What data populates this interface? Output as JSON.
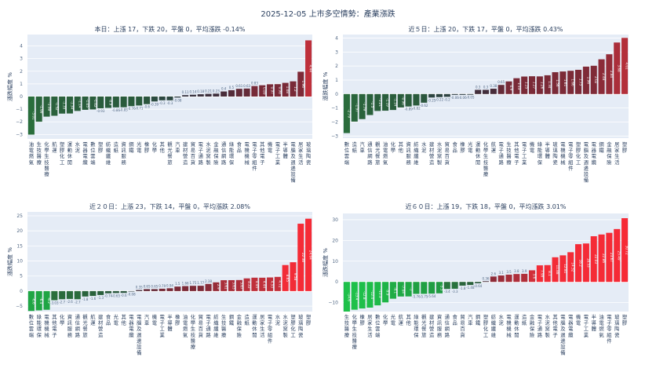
{
  "title": "2025-12-05 上市多空情勢：產業漲跌",
  "chart_data": [
    {
      "type": "bar",
      "title": "本日：上漲 17，下跌 20，平盤 0，平均漲跌 -0.14%",
      "ylabel": "漲跌幅度 %",
      "ylim": [
        -3.35,
        4.9
      ],
      "yticks": [
        -3,
        -2,
        -1,
        0,
        1,
        2,
        3,
        4
      ],
      "categories": [
        "油電燃氣",
        "生技醫療",
        "化學生技醫療",
        "航運",
        "塑膠化工",
        "運動休閒",
        "水泥",
        "電器電纜",
        "數位雲端",
        "塑膠",
        "紡織纖維",
        "造紙",
        "資訊服務",
        "鋼鐵",
        "光電",
        "橡膠",
        "化學",
        "其他",
        "觀光餐旅",
        "汽車",
        "建材營造",
        "貿易百貨",
        "電子通路",
        "水泥窯製",
        "金融保險",
        "通信網路",
        "綠能環保",
        "食品",
        "電機機械",
        "電子零組件",
        "其他電子",
        "機電",
        "電子工業",
        "半導體",
        "電腦及週邊設備",
        "居家生活",
        "玻璃陶瓷"
      ],
      "values": [
        -3.01,
        -1.99,
        -1.59,
        -1.52,
        -1.35,
        -1.34,
        -1.14,
        -1.05,
        -1.02,
        -0.93,
        -0.9,
        -0.86,
        -0.85,
        -0.76,
        -0.71,
        -0.6,
        -0.39,
        -0.3,
        -0.3,
        -0.08,
        0.11,
        0.14,
        0.18,
        0.21,
        0.23,
        0.4,
        0.5,
        0.61,
        0.63,
        0.83,
        0.89,
        0.97,
        0.98,
        1.08,
        1.2,
        1.96,
        4.44
      ]
    },
    {
      "type": "bar",
      "title": "近５日：上漲 20，下跌 17，平盤 0，平均漲跌 0.43%",
      "ylabel": "漲跌幅度 %",
      "ylim": [
        -3.15,
        4.25
      ],
      "yticks": [
        -3,
        -2,
        -1,
        0,
        1,
        2,
        3,
        4
      ],
      "categories": [
        "數位雲端",
        "造紙",
        "汽車",
        "通信網路",
        "觀光餐旅",
        "油電燃氣",
        "化學",
        "其他",
        "資訊服務",
        "紡織纖維",
        "水泥",
        "建材營造",
        "水泥窯製",
        "貿易百貨",
        "食品",
        "橡膠",
        "光電",
        "運動休閒",
        "化學生技醫療",
        "航運",
        "電子通路",
        "生技醫療",
        "其他電子",
        "電子工業",
        "機電",
        "綠能環保",
        "半導體",
        "玻璃陶瓷",
        "電機機械",
        "電子零組件",
        "塑膠化工",
        "電腦及週邊設備",
        "電器電纜",
        "鋼鐵",
        "金融保險",
        "居家生活",
        "塑膠"
      ],
      "values": [
        -2.79,
        -1.97,
        -1.79,
        -1.5,
        -1.21,
        -1.19,
        -1.14,
        -0.96,
        -0.89,
        -0.82,
        -0.62,
        -0.25,
        -0.22,
        -0.2,
        -0.06,
        -0.06,
        -0.05,
        0.3,
        0.3,
        0.38,
        0.65,
        0.9,
        1.13,
        1.25,
        1.27,
        1.26,
        1.34,
        1.56,
        1.61,
        1.66,
        1.73,
        1.96,
        2.02,
        2.48,
        2.84,
        3.68,
        4.01
      ]
    },
    {
      "type": "bar",
      "title": "近２０日：上漲 23，下跌 14，平盤 0，平均漲跌 2.08%",
      "ylabel": "漲跌幅度 %",
      "ylim": [
        -6.8,
        26.3
      ],
      "yticks": [
        -5,
        0,
        5,
        10,
        15,
        20,
        25
      ],
      "categories": [
        "數位雲端",
        "綠能環保",
        "電機機械",
        "其他電子",
        "化學",
        "資訊服務",
        "通信網路",
        "觀光餐旅",
        "航運",
        "建材營造",
        "食品",
        "光電",
        "其他",
        "電器電纜",
        "電腦及週邊設備",
        "汽車",
        "機電",
        "電子工業",
        "半導體",
        "橡膠",
        "油電燃氣",
        "化學生技醫療",
        "貿易百貨",
        "電子通路",
        "紡織纖維",
        "生技醫療",
        "鋼鐵",
        "金融保險",
        "造紙",
        "運動休閒",
        "居家生活",
        "電子零組件",
        "水泥",
        "水泥窯製",
        "塑膠化工",
        "玻璃陶瓷",
        "塑膠"
      ],
      "values": [
        -6.6,
        -6.4,
        -6.2,
        -3.03,
        -2.7,
        -2.6,
        -2.7,
        -1.8,
        -1.6,
        -1.3,
        -0.74,
        -0.65,
        -0.6,
        -0.08,
        0.35,
        0.65,
        0.65,
        0.79,
        0.94,
        1.5,
        1.66,
        1.75,
        1.77,
        2.38,
        2.9,
        3.61,
        3.63,
        3.67,
        4.22,
        4.45,
        4.44,
        4.53,
        4.72,
        8.65,
        9.58,
        22.38,
        24.04
      ]
    },
    {
      "type": "bar",
      "title": "近６０日：上漲 19，下跌 18，平盤 0，平均漲跌 3.01%",
      "ylabel": "漲跌幅度 %",
      "ylim": [
        -14.3,
        33
      ],
      "yticks": [
        -10,
        0,
        10,
        20,
        30
      ],
      "categories": [
        "生技醫療",
        "化學生技醫療",
        "橡膠",
        "居家生活",
        "數位雲端",
        "化學",
        "光電",
        "航運",
        "其他",
        "綠能環保",
        "觀光餐旅",
        "建材營造",
        "資訊服務",
        "通信網路",
        "食品",
        "貿易百貨",
        "汽車",
        "鋼鐵",
        "塑膠化工",
        "紡織纖維",
        "水泥",
        "電機機械",
        "運動休閒",
        "造紙",
        "金融保險",
        "電子通路",
        "水泥窯製",
        "其他電子",
        "電腦及週邊設備",
        "電器電纜",
        "機電",
        "電子工業",
        "半導體",
        "油電燃氣",
        "電子零組件",
        "玻璃陶瓷",
        "塑膠"
      ],
      "values": [
        -14.6,
        -13.4,
        -12.8,
        -12.4,
        -11.3,
        -9.9,
        -8.1,
        -7.04,
        -7,
        -5.76,
        -5.75,
        -5.64,
        -5.5,
        -3.4,
        -3.3,
        -1.8,
        -1.48,
        -0.64,
        0.36,
        2.6,
        3.1,
        3.5,
        3.8,
        3.9,
        5.6,
        7.99,
        8.1,
        11.88,
        12.81,
        14.32,
        18.2,
        18.53,
        22.03,
        22.86,
        23.67,
        25.49,
        30.72
      ]
    }
  ]
}
